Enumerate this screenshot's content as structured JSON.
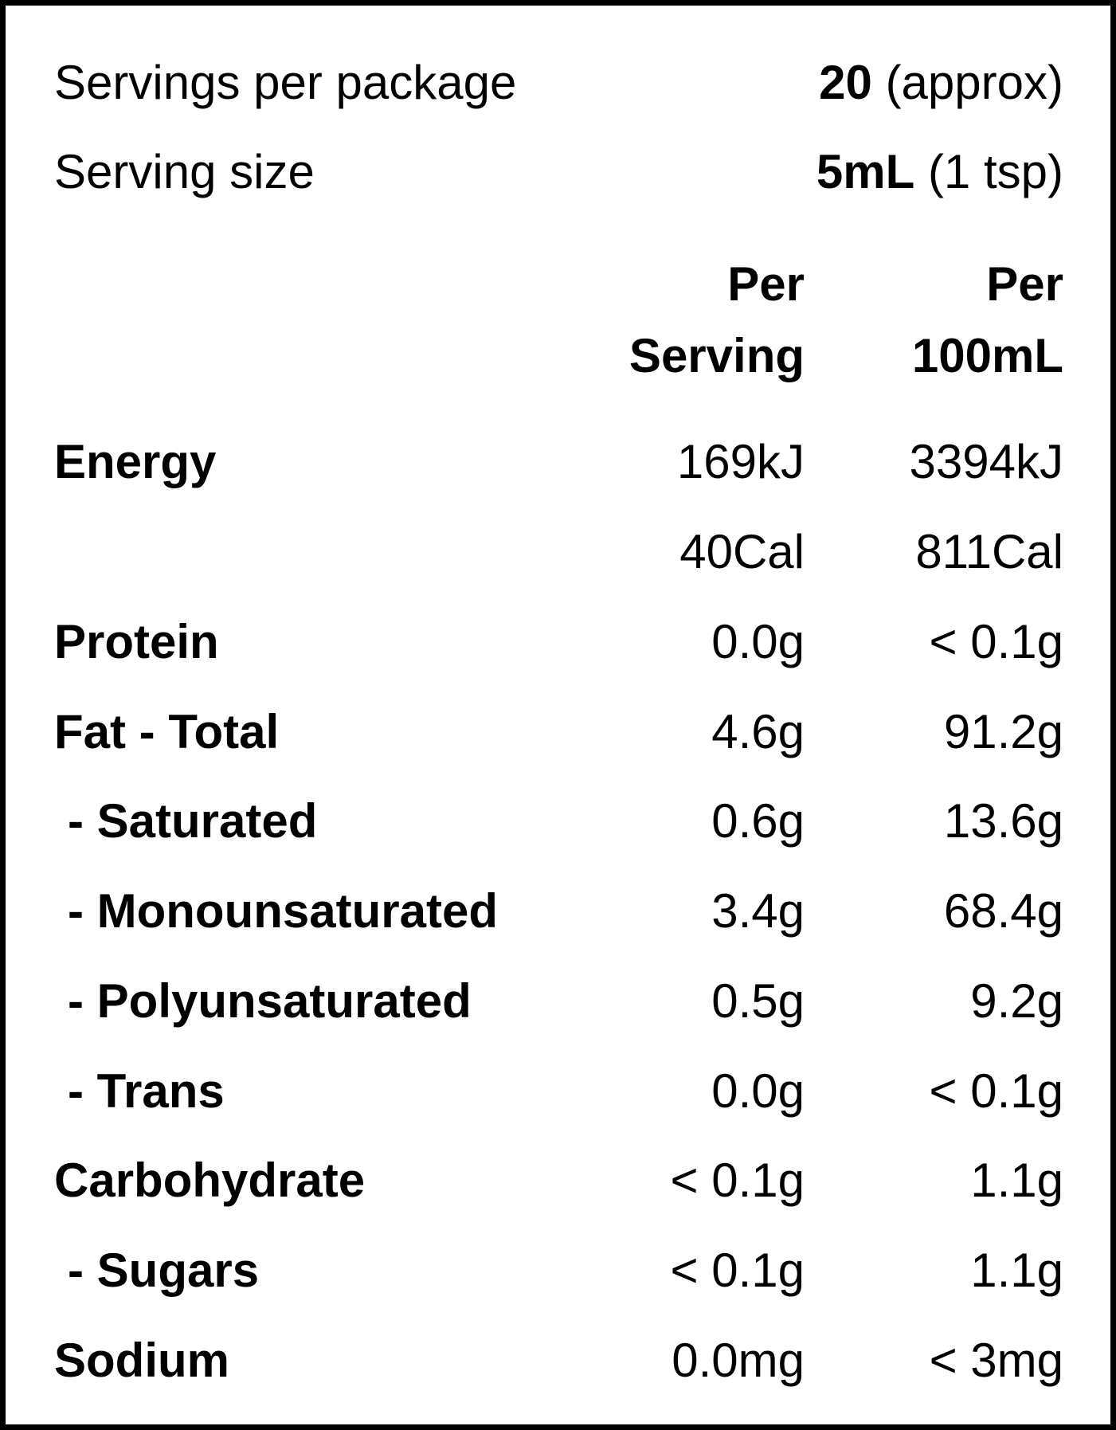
{
  "summary": {
    "servings_label": "Servings per package",
    "servings_value": "20",
    "servings_note": "(approx)",
    "size_label": "Serving size",
    "size_value": "5mL",
    "size_note": "(1 tsp)"
  },
  "headers": {
    "per_serving_line1": "Per",
    "per_serving_line2": "Serving",
    "per_100_line1": "Per",
    "per_100_line2": "100mL"
  },
  "rows": [
    {
      "name": "Energy",
      "per_serving": "169kJ",
      "per_100": "3394kJ"
    },
    {
      "name": "",
      "per_serving": "40Cal",
      "per_100": "811Cal"
    },
    {
      "name": "Protein",
      "per_serving": "0.0g",
      "per_100": "< 0.1g"
    },
    {
      "name": "Fat - Total",
      "per_serving": "4.6g",
      "per_100": "91.2g"
    },
    {
      "name": "- Saturated",
      "per_serving": "0.6g",
      "per_100": "13.6g"
    },
    {
      "name": "- Monounsaturated",
      "per_serving": "3.4g",
      "per_100": "68.4g"
    },
    {
      "name": "- Polyunsaturated",
      "per_serving": "0.5g",
      "per_100": "9.2g"
    },
    {
      "name": "- Trans",
      "per_serving": "0.0g",
      "per_100": "< 0.1g"
    },
    {
      "name": "Carbohydrate",
      "per_serving": "< 0.1g",
      "per_100": "1.1g"
    },
    {
      "name": "- Sugars",
      "per_serving": "< 0.1g",
      "per_100": "1.1g"
    },
    {
      "name": "Sodium",
      "per_serving": "0.0mg",
      "per_100": "< 3mg"
    }
  ]
}
